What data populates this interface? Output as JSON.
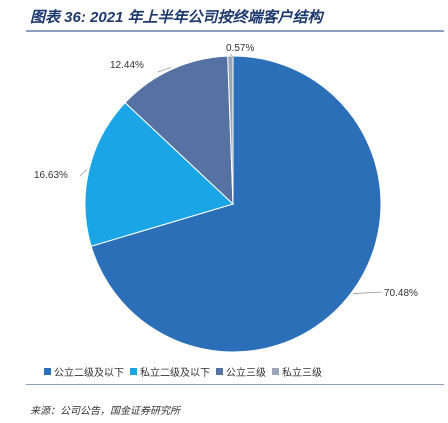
{
  "figure": {
    "title": "图表 36: 2021 年上半年公司按终端客户结构",
    "source": "来源：公司公告，国金证券研究所"
  },
  "chart_data": {
    "type": "pie",
    "slices": [
      {
        "name": "公立二级及以下",
        "value": 70.48,
        "label": "70.48%",
        "color": "#2b6fb8"
      },
      {
        "name": "私立二级及以下",
        "value": 16.63,
        "label": "16.63%",
        "color": "#1aa6e6"
      },
      {
        "name": "公立三级",
        "value": 12.44,
        "label": "12.44%",
        "color": "#5672a3"
      },
      {
        "name": "私立三级",
        "value": 0.57,
        "label": "0.57%",
        "color": "#9aa6b8"
      }
    ],
    "legend_position": "bottom"
  }
}
